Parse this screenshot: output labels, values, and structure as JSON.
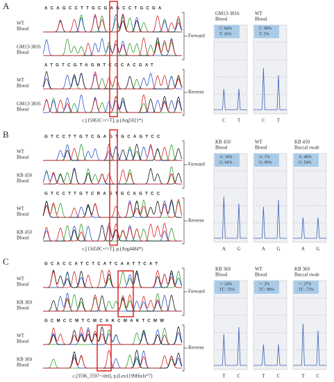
{
  "panels": [
    {
      "label": "A",
      "top_sequence": "ACAGCCTTGCGAGCCTGCGA",
      "bottom_sequence": "ATGTCGTAGNTCGCACGAT",
      "rows": [
        {
          "sample": "WT",
          "tissue": "Blood"
        },
        {
          "sample": "GM13-3816",
          "tissue": "Blood"
        },
        {
          "sample": "WT",
          "tissue": "Blood"
        },
        {
          "sample": "GM13-3816",
          "tissue": "Blood"
        }
      ],
      "directions": [
        "Forward",
        "Reverse"
      ],
      "mutation": "c.[15061C=/>T], p.(Arg5021*)",
      "pyrograms": [
        {
          "sample": "GM13-3816",
          "tissue": "Blood",
          "results": [
            "C: 84%",
            "T: 16%"
          ],
          "bases": [
            "C",
            "T"
          ]
        },
        {
          "sample": "WT",
          "tissue": "Blood",
          "results": [
            "C: 98%",
            "T: 2%"
          ],
          "bases": [
            "C",
            "T"
          ]
        }
      ]
    },
    {
      "label": "B",
      "top_sequence": "GTCCTTGTCGAGTGCAGTCC",
      "bottom_sequence": "GTCCTTGTCRAGTGCAGTCC",
      "rows": [
        {
          "sample": "WT",
          "tissue": "Blood"
        },
        {
          "sample": "KB 450",
          "tissue": "Blood"
        },
        {
          "sample": "WT",
          "tissue": "Blood"
        },
        {
          "sample": "KB 450",
          "tissue": "Blood"
        }
      ],
      "directions": [
        "Forward",
        "Reverse"
      ],
      "mutation": "c.[13450C=/>T], p.(Arg4484*)",
      "pyrograms": [
        {
          "sample": "KB 450",
          "tissue": "Blood",
          "results": [
            "A: 34%",
            "G: 66%"
          ],
          "bases": [
            "A",
            "G"
          ]
        },
        {
          "sample": "WT",
          "tissue": "Blood",
          "results": [
            "A: 1%",
            "G: 99%"
          ],
          "bases": [
            "A",
            "G"
          ]
        },
        {
          "sample": "KB 450",
          "tissue": "Buccal swab",
          "results": [
            "A: 46%",
            "G: 54%"
          ],
          "bases": [
            "A",
            "G"
          ]
        }
      ]
    },
    {
      "label": "C",
      "top_sequence": "GCACCATCTCATCAATTCAT",
      "bottom_sequence": "GCMCCMTCMCAKCMAKTCMW",
      "rows": [
        {
          "sample": "WT",
          "tissue": "Blood"
        },
        {
          "sample": "KB 369",
          "tissue": "Blood"
        },
        {
          "sample": "WT",
          "tissue": "Blood"
        },
        {
          "sample": "KB 369",
          "tissue": "Blood"
        }
      ],
      "directions": [
        "Forward",
        "Reverse"
      ],
      "mutation": "c.[3596_3597=/del], p.(Leu1199Hisfs*7)",
      "pyrograms": [
        {
          "sample": "KB 369",
          "tissue": "Blood",
          "results": [
            "--: 24%",
            "TC: 76%"
          ],
          "bases": [
            "T",
            "C"
          ]
        },
        {
          "sample": "WT",
          "tissue": "Blood",
          "results": [
            "--: 2%",
            "TC: 98%"
          ],
          "bases": [
            "T",
            "C"
          ]
        },
        {
          "sample": "KB 369",
          "tissue": "Buccal swab",
          "results": [
            "--: 27%",
            "TC: 73%"
          ],
          "bases": [
            "T",
            "C"
          ]
        }
      ]
    }
  ]
}
